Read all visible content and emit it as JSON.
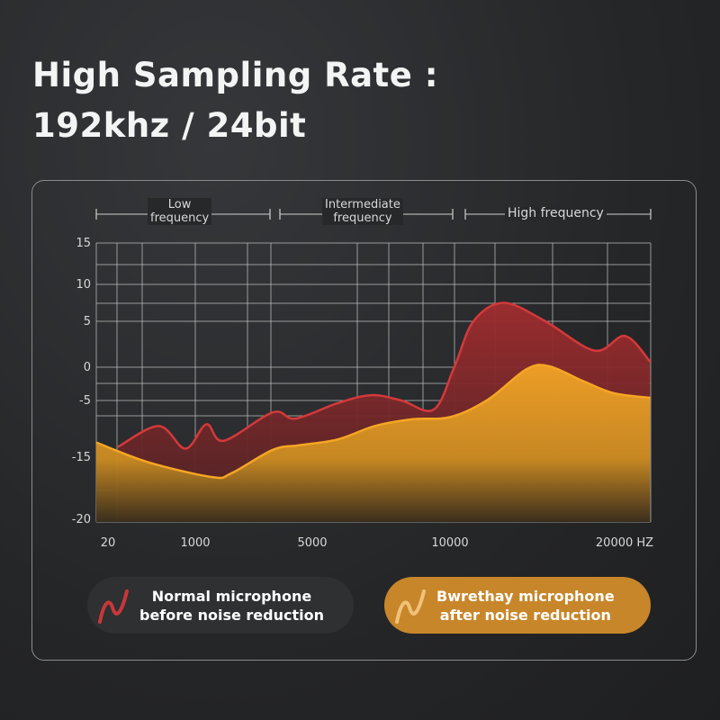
{
  "header": {
    "line1": "High Sampling Rate :",
    "line2": "192khz / 24bit"
  },
  "bands": [
    {
      "label": "Low\nfrequency",
      "line1": "Low",
      "line2": "frequency"
    },
    {
      "label": "Intermediate\nfrequency",
      "line1": "Intermediate",
      "line2": "frequency"
    },
    {
      "label": "High frequency",
      "line1": "High frequency",
      "line2": ""
    }
  ],
  "legend": [
    {
      "line1": "Normal microphone",
      "line2": "before noise reduction",
      "icon": "wave-icon",
      "color": "#c8373a"
    },
    {
      "line1": "Bwrethay microphone",
      "line2": "after noise reduction",
      "icon": "wave-icon",
      "color": "#f0c27a"
    }
  ],
  "chart_data": {
    "type": "area",
    "title": "",
    "xlabel": "",
    "ylabel": "",
    "x_ticks": [
      {
        "value": 20,
        "label": "20"
      },
      {
        "value": 1000,
        "label": "1000"
      },
      {
        "value": 5000,
        "label": "5000"
      },
      {
        "value": 10000,
        "label": "10000"
      },
      {
        "value": 20000,
        "label": "20000 HZ"
      }
    ],
    "y_ticks": [
      {
        "value": 15,
        "label": "15"
      },
      {
        "value": 10,
        "label": "10"
      },
      {
        "value": 5,
        "label": "5"
      },
      {
        "value": 0,
        "label": "0"
      },
      {
        "value": -5,
        "label": "-5"
      },
      {
        "value": -15,
        "label": "-15"
      },
      {
        "value": -20,
        "label": "-20"
      }
    ],
    "xlim": [
      0,
      21700
    ],
    "ylim": [
      -20,
      15
    ],
    "grid": true,
    "legend_placement": "bottom",
    "series": [
      {
        "name": "Normal microphone before noise reduction",
        "color": "#d4393b",
        "fill": "#8a2a2c",
        "points": [
          [
            130,
            -13.2
          ],
          [
            590,
            -9.5
          ],
          [
            890,
            -13.5
          ],
          [
            1380,
            -9.2
          ],
          [
            1970,
            -12.1
          ],
          [
            3650,
            -7.1
          ],
          [
            4420,
            -8.2
          ],
          [
            5900,
            -5.5
          ],
          [
            7140,
            -4.2
          ],
          [
            8240,
            -5.0
          ],
          [
            9410,
            -6.6
          ],
          [
            10270,
            0.1
          ],
          [
            11370,
            5.0
          ],
          [
            13150,
            7.5
          ],
          [
            15580,
            5.0
          ],
          [
            18460,
            1.8
          ],
          [
            20240,
            3.4
          ],
          [
            21670,
            0.6
          ]
        ]
      },
      {
        "name": "Bwrethay microphone after noise reduction",
        "color": "#f5a623",
        "fill": "#e0921f",
        "points": [
          [
            0,
            -12.4
          ],
          [
            470,
            -15.4
          ],
          [
            1580,
            -16.6
          ],
          [
            2230,
            -16.3
          ],
          [
            3650,
            -13.7
          ],
          [
            4550,
            -12.9
          ],
          [
            5900,
            -11.9
          ],
          [
            7280,
            -9.5
          ],
          [
            8650,
            -8.3
          ],
          [
            10050,
            -7.9
          ],
          [
            12260,
            -4.8
          ],
          [
            14470,
            -0.3
          ],
          [
            15800,
            0.1
          ],
          [
            17800,
            -2.1
          ],
          [
            19570,
            -3.9
          ],
          [
            21670,
            -4.6
          ]
        ]
      }
    ]
  }
}
